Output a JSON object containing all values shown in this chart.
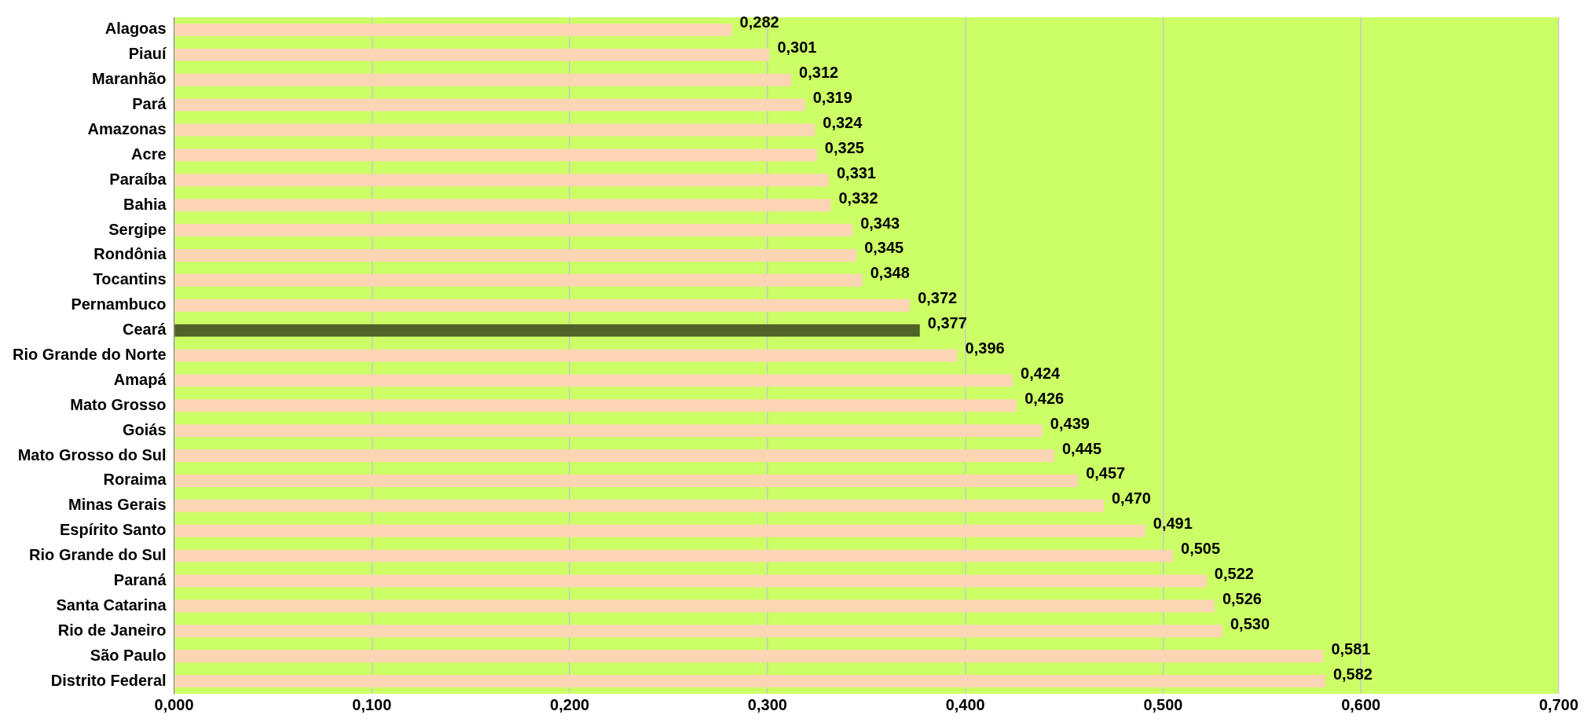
{
  "chart_data": {
    "type": "bar",
    "orientation": "horizontal",
    "categories": [
      "Alagoas",
      "Piauí",
      "Maranhão",
      "Pará",
      "Amazonas",
      "Acre",
      "Paraíba",
      "Bahia",
      "Sergipe",
      "Rondônia",
      "Tocantins",
      "Pernambuco",
      "Ceará",
      "Rio Grande do Norte",
      "Amapá",
      "Mato Grosso",
      "Goiás",
      "Mato Grosso do Sul",
      "Roraima",
      "Minas Gerais",
      "Espírito Santo",
      "Rio Grande do Sul",
      "Paraná",
      "Santa Catarina",
      "Rio de Janeiro",
      "São Paulo",
      "Distrito Federal"
    ],
    "values": [
      0.282,
      0.301,
      0.312,
      0.319,
      0.324,
      0.325,
      0.331,
      0.332,
      0.343,
      0.345,
      0.348,
      0.372,
      0.377,
      0.396,
      0.424,
      0.426,
      0.439,
      0.445,
      0.457,
      0.47,
      0.491,
      0.505,
      0.522,
      0.526,
      0.53,
      0.581,
      0.582
    ],
    "value_labels": [
      "0,282",
      "0,301",
      "0,312",
      "0,319",
      "0,324",
      "0,325",
      "0,331",
      "0,332",
      "0,343",
      "0,345",
      "0,348",
      "0,372",
      "0,377",
      "0,396",
      "0,424",
      "0,426",
      "0,439",
      "0,445",
      "0,457",
      "0,470",
      "0,491",
      "0,505",
      "0,522",
      "0,526",
      "0,530",
      "0,581",
      "0,582"
    ],
    "colors": [
      "#fcd5b4",
      "#fcd5b4",
      "#fcd5b4",
      "#fcd5b4",
      "#fcd5b4",
      "#fcd5b4",
      "#fcd5b4",
      "#fcd5b4",
      "#fcd5b4",
      "#fcd5b4",
      "#fcd5b4",
      "#fcd5b4",
      "#4f6228",
      "#fcd5b4",
      "#fcd5b4",
      "#fcd5b4",
      "#fcd5b4",
      "#fcd5b4",
      "#fcd5b4",
      "#fcd5b4",
      "#fcd5b4",
      "#fcd5b4",
      "#fcd5b4",
      "#fcd5b4",
      "#fcd5b4",
      "#fcd5b4",
      "#fcd5b4"
    ],
    "xlim": [
      0,
      0.7
    ],
    "xticks": [
      {
        "value": 0,
        "label": "0,000"
      },
      {
        "value": 0.1,
        "label": "0,100"
      },
      {
        "value": 0.2,
        "label": "0,200"
      },
      {
        "value": 0.3,
        "label": "0,300"
      },
      {
        "value": 0.4,
        "label": "0,400"
      },
      {
        "value": 0.5,
        "label": "0,500"
      },
      {
        "value": 0.6,
        "label": "0,600"
      },
      {
        "value": 0.7,
        "label": "0,700"
      }
    ],
    "grid": "x",
    "legend": false
  }
}
